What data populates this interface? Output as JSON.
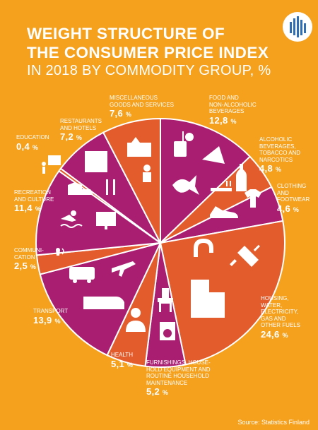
{
  "title_line1": "WEIGHT STRUCTURE OF",
  "title_line2": "THE CONSUMER PRICE INDEX",
  "title_line3": "IN 2018 BY COMMODITY GROUP, %",
  "source": "Source: Statistics Finland",
  "colors": {
    "background": "#F5A11E",
    "purple": "#AA1E72",
    "red_orange": "#E25C2C",
    "white": "#FFFFFF",
    "logo_blue": "#2F6FB5"
  },
  "chart_data": {
    "type": "pie",
    "unit": "%",
    "slices": [
      {
        "key": "food",
        "name": "FOOD AND NON-ALCOHOLIC BEVERAGES",
        "value": 12.8,
        "value_label": "12,8",
        "color": "#AA1E72"
      },
      {
        "key": "alcohol",
        "name": "ALCOHOLIC BEVERAGES, TOBACCO AND NARCOTICS",
        "value": 4.8,
        "value_label": "4,8",
        "color": "#E25C2C"
      },
      {
        "key": "clothing",
        "name": "CLOTHING AND FOOTWEAR",
        "value": 4.6,
        "value_label": "4,6",
        "color": "#AA1E72"
      },
      {
        "key": "housing",
        "name": "HOUSING, WATER, ELECTRICITY, GAS AND OTHER FUELS",
        "value": 24.6,
        "value_label": "24,6",
        "color": "#E25C2C"
      },
      {
        "key": "furnishings",
        "name": "FURNISHINGS, HOUSEHOLD EQUIPMENT AND ROUTINE HOUSEHOLD MAINTENANCE",
        "value": 5.2,
        "value_label": "5,2",
        "color": "#AA1E72"
      },
      {
        "key": "health",
        "name": "HEALTH",
        "value": 5.1,
        "value_label": "5,1",
        "color": "#E25C2C"
      },
      {
        "key": "transport",
        "name": "TRANSPORT",
        "value": 13.9,
        "value_label": "13,9",
        "color": "#AA1E72"
      },
      {
        "key": "communication",
        "name": "COMMUNICATION",
        "value": 2.5,
        "value_label": "2,5",
        "color": "#E25C2C"
      },
      {
        "key": "recreation",
        "name": "RECREATION AND CULTURE",
        "value": 11.4,
        "value_label": "11,4",
        "color": "#AA1E72"
      },
      {
        "key": "education",
        "name": "EDUCATION",
        "value": 0.4,
        "value_label": "0,4",
        "color": "#E25C2C"
      },
      {
        "key": "restaurants",
        "name": "RESTAURANTS AND HOTELS",
        "value": 7.2,
        "value_label": "7,2",
        "color": "#AA1E72"
      },
      {
        "key": "misc",
        "name": "MISCELLANEOUS GOODS AND SERVICES",
        "value": 7.6,
        "value_label": "7,6",
        "color": "#E25C2C"
      }
    ]
  },
  "labels": {
    "food": {
      "line1": "FOOD AND",
      "line2": "NON-ALCOHOLIC",
      "line3": "BEVERAGES"
    },
    "alcohol": {
      "line1": "ALCOHOLIC",
      "line2": "BEVERAGES,",
      "line3": "TOBACCO AND",
      "line4": "NARCOTICS"
    },
    "clothing": {
      "line1": "CLOTHING",
      "line2": "AND",
      "line3": "FOOTWEAR"
    },
    "housing": {
      "line1": "HOUSING,",
      "line2": "WATER,",
      "line3": "ELECTRICITY,",
      "line4": "GAS AND",
      "line5": "OTHER FUELS"
    },
    "furnishings": {
      "line1": "FURNISHINGS, HOUSE-",
      "line2": "HOLD EQUIPMENT AND",
      "line3": "ROUTINE HOUSEHOLD",
      "line4": "MAINTENANCE"
    },
    "health": {
      "line1": "HEALTH"
    },
    "transport": {
      "line1": "TRANSPORT"
    },
    "communication": {
      "line1": "COMMUNI-",
      "line2": "CATION"
    },
    "recreation": {
      "line1": "RECREATION",
      "line2": "AND CULTURE"
    },
    "education": {
      "line1": "EDUCATION"
    },
    "restaurants": {
      "line1": "RESTAURANTS",
      "line2": "AND HOTELS"
    },
    "misc": {
      "line1": "MISCELLANEOUS",
      "line2": "GOODS AND SERVICES"
    }
  },
  "icons": [
    "logo-bars-icon",
    "food-drink-icon",
    "cheese-icon",
    "fish-icon",
    "bottle-icon",
    "cigarette-icon",
    "shirt-icon",
    "shoe-icon",
    "faucet-icon",
    "plug-icon",
    "building-icon",
    "chair-icon",
    "washing-machine-icon",
    "doctor-icon",
    "train-icon",
    "plane-icon",
    "van-icon",
    "phone-icon",
    "monitor-icon",
    "swimmer-icon",
    "rocking-horse-icon",
    "teacher-board-icon",
    "hotel-icon",
    "cutlery-icon",
    "gift-basket-icon",
    "baby-icon"
  ]
}
